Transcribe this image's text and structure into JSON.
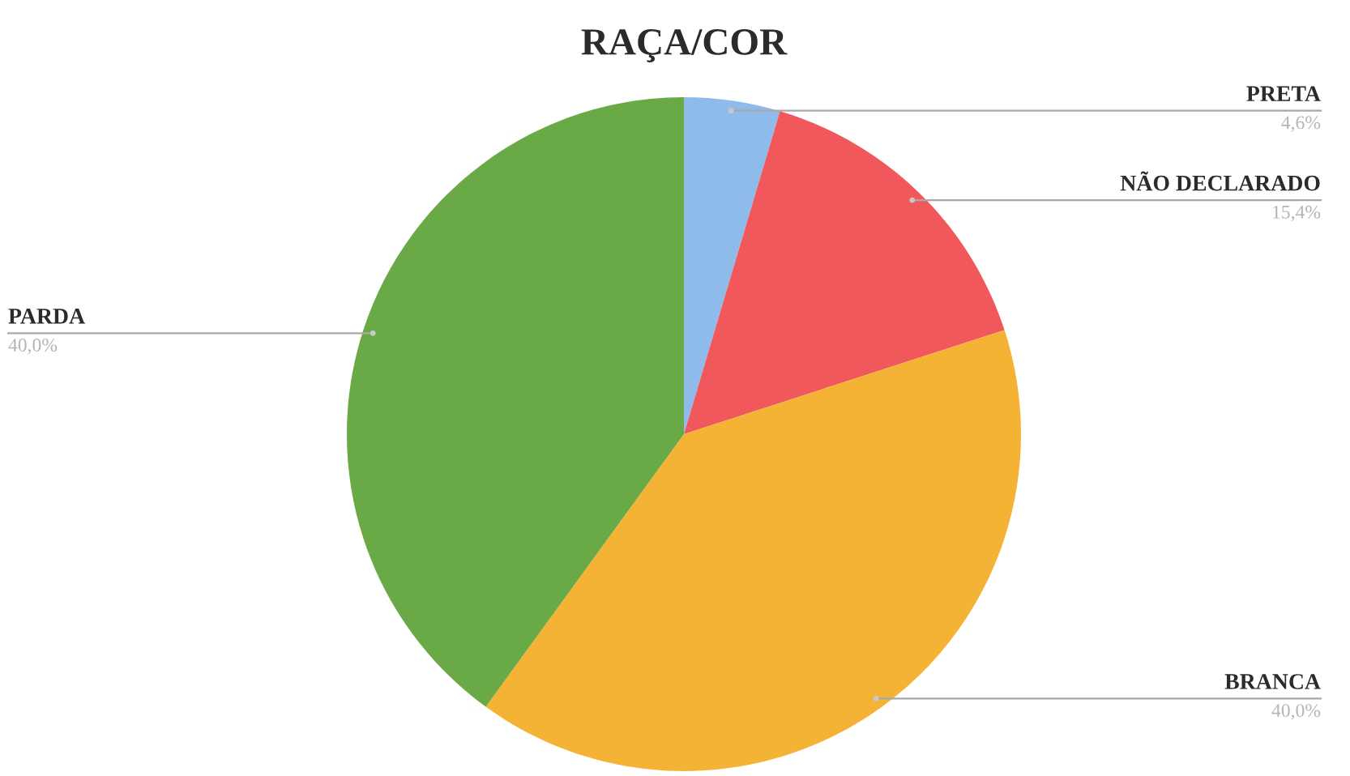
{
  "chart_data": {
    "type": "pie",
    "title": "RAÇA/COR",
    "categories": [
      "PRETA",
      "NÃO DECLARADO",
      "BRANCA",
      "PARDA"
    ],
    "values": [
      4.6,
      15.4,
      40.0,
      40.0
    ],
    "value_labels": [
      "4,6%",
      "15,4%",
      "40,0%",
      "40,0%"
    ],
    "colors": [
      "#8fbbea",
      "#f0585c",
      "#f5b335",
      "#6aaa46"
    ]
  }
}
